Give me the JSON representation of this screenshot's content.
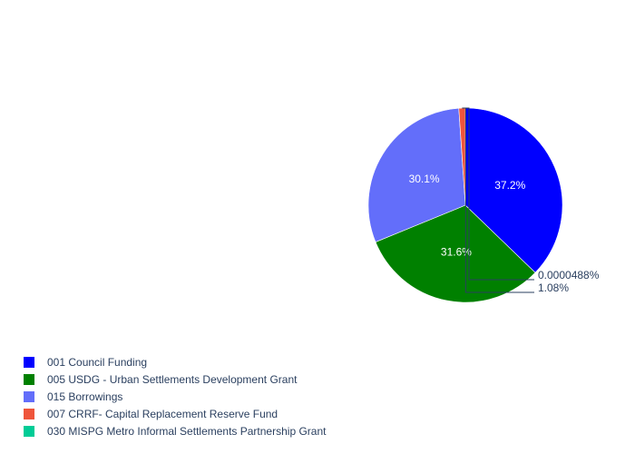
{
  "chart_data": {
    "type": "pie",
    "slices": [
      {
        "label": "001 Council Funding",
        "value": 37.2,
        "text": "37.2%",
        "color": "#0000ff"
      },
      {
        "label": "005 USDG - Urban Settlements Development Grant",
        "value": 31.6,
        "text": "31.6%",
        "color": "#008000"
      },
      {
        "label": "015 Borrowings",
        "value": 30.1,
        "text": "30.1%",
        "color": "#636efa"
      },
      {
        "label": "007 CRRF- Capital Replacement Reserve Fund",
        "value": 1.08,
        "text": "1.08%",
        "color": "#ef553b"
      },
      {
        "label": "030 MISPG Metro Informal Settlements Partnership Grant",
        "value": 4.88e-05,
        "text": "0.0000488%",
        "color": "#00cc96"
      }
    ],
    "sort": "descending",
    "direction": "clockwise",
    "legend_position": "bottom-left",
    "text_colors": {
      "inside": "#ffffff",
      "outside": "#2a3f5f"
    }
  }
}
